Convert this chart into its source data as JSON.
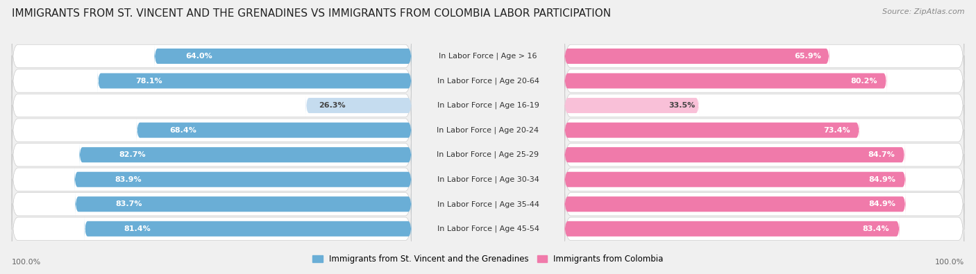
{
  "title": "IMMIGRANTS FROM ST. VINCENT AND THE GRENADINES VS IMMIGRANTS FROM COLOMBIA LABOR PARTICIPATION",
  "source": "Source: ZipAtlas.com",
  "categories": [
    "In Labor Force | Age > 16",
    "In Labor Force | Age 20-64",
    "In Labor Force | Age 16-19",
    "In Labor Force | Age 20-24",
    "In Labor Force | Age 25-29",
    "In Labor Force | Age 30-34",
    "In Labor Force | Age 35-44",
    "In Labor Force | Age 45-54"
  ],
  "left_values": [
    64.0,
    78.1,
    26.3,
    68.4,
    82.7,
    83.9,
    83.7,
    81.4
  ],
  "right_values": [
    65.9,
    80.2,
    33.5,
    73.4,
    84.7,
    84.9,
    84.9,
    83.4
  ],
  "left_color": "#6aaed6",
  "right_color": "#f07aaa",
  "left_color_light": "#c5dcef",
  "right_color_light": "#f9c0d8",
  "left_label": "Immigrants from St. Vincent and the Grenadines",
  "right_label": "Immigrants from Colombia",
  "bg_color": "#f0f0f0",
  "row_bg_color": "#e8e8e8",
  "row_inner_color": "#ffffff",
  "title_fontsize": 11,
  "label_fontsize": 8,
  "value_fontsize": 8,
  "legend_fontsize": 8.5,
  "footer_value": "100.0%",
  "max_val": 100.0,
  "threshold_light": 40
}
